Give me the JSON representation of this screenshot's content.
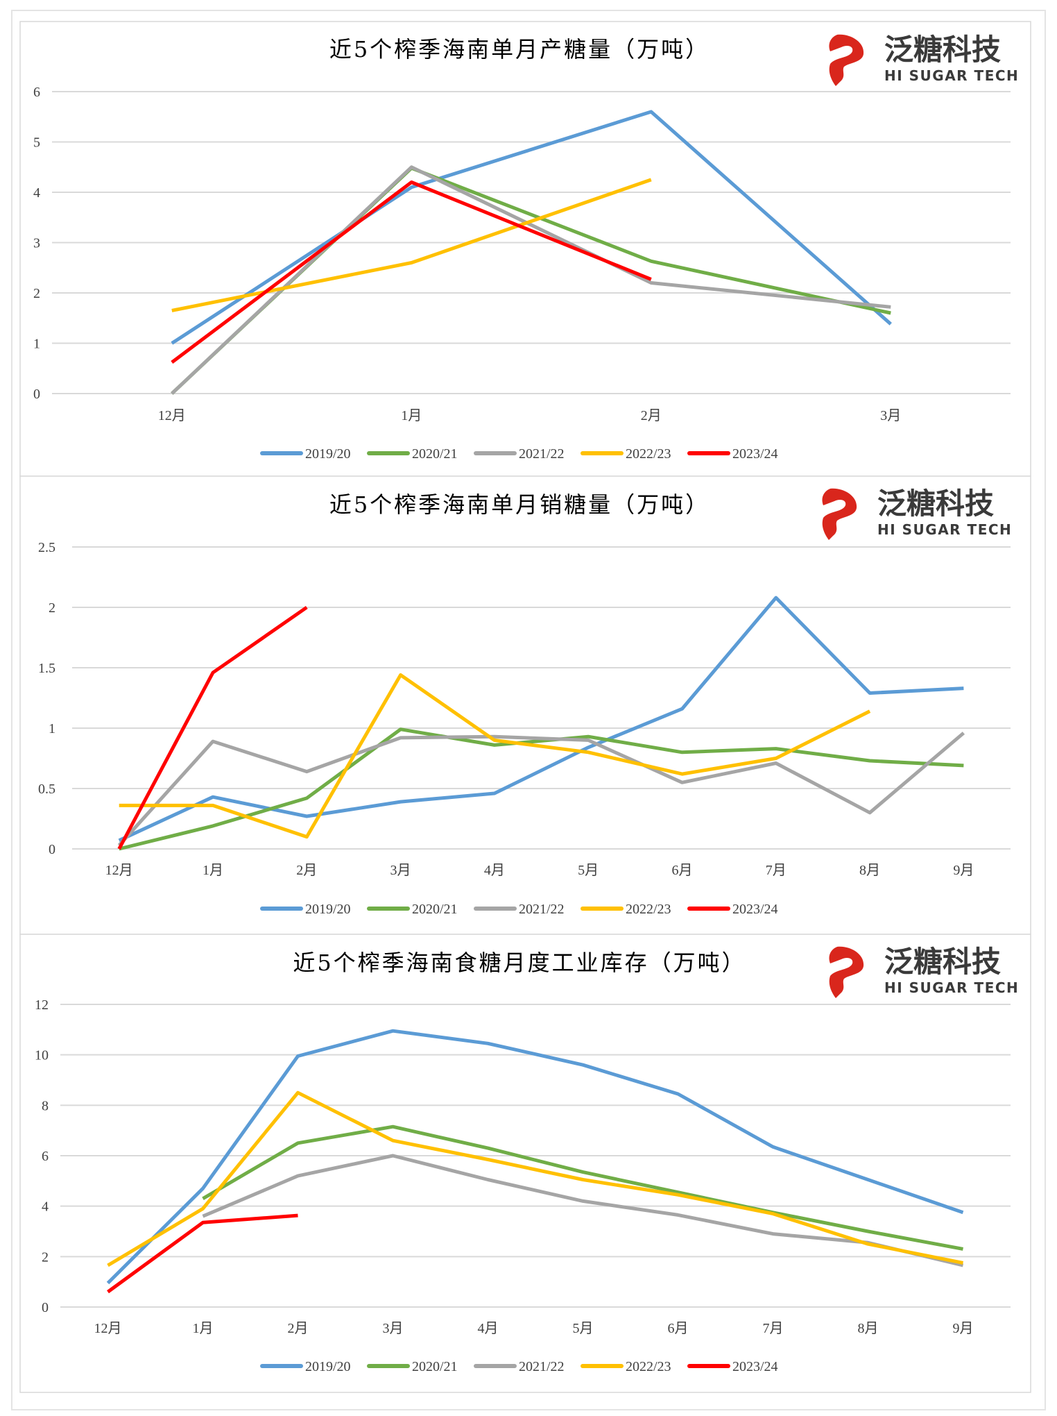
{
  "logo": {
    "cn": "泛糖科技",
    "en": "HI SUGAR TECH",
    "color": "#d9261c"
  },
  "series_colors": {
    "2019/20": "#5b9bd5",
    "2020/21": "#70ad47",
    "2021/22": "#a5a5a5",
    "2022/23": "#ffc000",
    "2023/24": "#ff0000"
  },
  "chart_data": [
    {
      "type": "line",
      "title": "近5个榨季海南单月产糖量（万吨）",
      "categories": [
        "12月",
        "1月",
        "2月",
        "3月"
      ],
      "ylim": [
        0,
        6
      ],
      "yticks": [
        "0",
        "1",
        "2",
        "3",
        "4",
        "5",
        "6"
      ],
      "grid": true,
      "legend": "bottom",
      "series": [
        {
          "name": "2019/20",
          "values": [
            1.0,
            4.1,
            5.6,
            1.38
          ]
        },
        {
          "name": "2020/21",
          "values": [
            0,
            4.48,
            2.63,
            1.6
          ]
        },
        {
          "name": "2021/22",
          "values": [
            0,
            4.5,
            2.2,
            1.72
          ]
        },
        {
          "name": "2022/23",
          "values": [
            1.65,
            2.6,
            4.25,
            null
          ]
        },
        {
          "name": "2023/24",
          "values": [
            0.62,
            4.2,
            2.27,
            null
          ]
        }
      ]
    },
    {
      "type": "line",
      "title": "近5个榨季海南单月销糖量（万吨）",
      "categories": [
        "12月",
        "1月",
        "2月",
        "3月",
        "4月",
        "5月",
        "6月",
        "7月",
        "8月",
        "9月"
      ],
      "ylim": [
        0,
        2.5
      ],
      "yticks": [
        "0",
        "0.5",
        "1",
        "1.5",
        "2",
        "2.5"
      ],
      "grid": true,
      "legend": "bottom",
      "series": [
        {
          "name": "2019/20",
          "values": [
            0.07,
            0.43,
            0.27,
            0.39,
            0.46,
            0.84,
            1.16,
            2.08,
            1.29,
            1.33
          ]
        },
        {
          "name": "2020/21",
          "values": [
            0,
            0.19,
            0.42,
            0.99,
            0.86,
            0.93,
            0.8,
            0.83,
            0.73,
            0.69
          ]
        },
        {
          "name": "2021/22",
          "values": [
            0.03,
            0.89,
            0.64,
            0.92,
            0.93,
            0.9,
            0.55,
            0.71,
            0.3,
            0.96
          ]
        },
        {
          "name": "2022/23",
          "values": [
            0.36,
            0.36,
            0.1,
            1.44,
            0.9,
            0.8,
            0.62,
            0.75,
            1.14,
            null
          ]
        },
        {
          "name": "2023/24",
          "values": [
            0,
            1.46,
            2.0,
            null,
            null,
            null,
            null,
            null,
            null,
            null
          ]
        }
      ]
    },
    {
      "type": "line",
      "title": "近5个榨季海南食糖月度工业库存（万吨）",
      "categories": [
        "12月",
        "1月",
        "2月",
        "3月",
        "4月",
        "5月",
        "6月",
        "7月",
        "8月",
        "9月"
      ],
      "ylim": [
        0,
        12
      ],
      "yticks": [
        "0",
        "2",
        "4",
        "6",
        "8",
        "10",
        "12"
      ],
      "grid": true,
      "legend": "bottom",
      "series": [
        {
          "name": "2019/20",
          "values": [
            0.95,
            4.7,
            9.95,
            10.95,
            10.45,
            9.6,
            8.45,
            6.35,
            5.05,
            3.75
          ]
        },
        {
          "name": "2020/21",
          "values": [
            null,
            4.3,
            6.5,
            7.15,
            6.3,
            5.35,
            4.55,
            3.75,
            3.0,
            2.3
          ]
        },
        {
          "name": "2021/22",
          "values": [
            null,
            3.6,
            5.2,
            6.0,
            5.05,
            4.2,
            3.65,
            2.9,
            2.55,
            1.65
          ]
        },
        {
          "name": "2022/23",
          "values": [
            1.65,
            3.9,
            8.5,
            6.6,
            5.85,
            5.05,
            4.45,
            3.7,
            2.5,
            1.75
          ]
        },
        {
          "name": "2023/24",
          "values": [
            0.6,
            3.35,
            3.63,
            null,
            null,
            null,
            null,
            null,
            null,
            null
          ]
        }
      ]
    }
  ]
}
